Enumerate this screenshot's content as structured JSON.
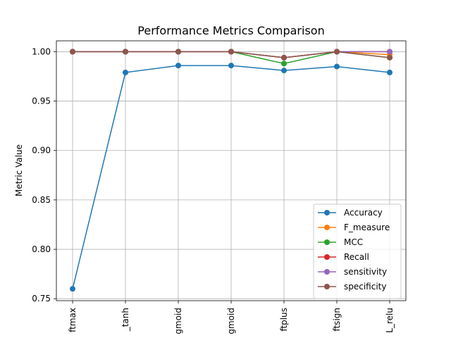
{
  "chart_data": {
    "type": "line",
    "title": "Performance Metrics Comparison",
    "xlabel": "",
    "ylabel": "Metric Value",
    "categories": [
      "ftmax",
      "_tanh",
      "gmoid",
      "gmoid",
      "ftplus",
      "ftsign",
      "L_relu"
    ],
    "ylim": [
      0.748,
      1.011
    ],
    "yticks": [
      0.75,
      0.8,
      0.85,
      0.9,
      0.95,
      1.0
    ],
    "ytick_labels": [
      "0.75",
      "0.80",
      "0.85",
      "0.90",
      "0.95",
      "1.00"
    ],
    "grid": true,
    "legend_position": "lower-right",
    "series": [
      {
        "name": "Accuracy",
        "color": "#1f77b4",
        "values": [
          0.76,
          0.979,
          0.986,
          0.986,
          0.981,
          0.985,
          0.979
        ]
      },
      {
        "name": "F_measure",
        "color": "#ff7f0e",
        "values": [
          1.0,
          1.0,
          1.0,
          1.0,
          0.994,
          1.0,
          0.997
        ]
      },
      {
        "name": "MCC",
        "color": "#2ca02c",
        "values": [
          1.0,
          1.0,
          1.0,
          1.0,
          0.988,
          1.0,
          0.994
        ]
      },
      {
        "name": "Recall",
        "color": "#d62728",
        "values": [
          1.0,
          1.0,
          1.0,
          1.0,
          0.994,
          1.0,
          1.0
        ]
      },
      {
        "name": "sensitivity",
        "color": "#9467bd",
        "values": [
          1.0,
          1.0,
          1.0,
          1.0,
          0.994,
          1.0,
          1.0
        ]
      },
      {
        "name": "specificity",
        "color": "#8c564b",
        "values": [
          1.0,
          1.0,
          1.0,
          1.0,
          0.994,
          1.0,
          0.994
        ]
      }
    ]
  }
}
